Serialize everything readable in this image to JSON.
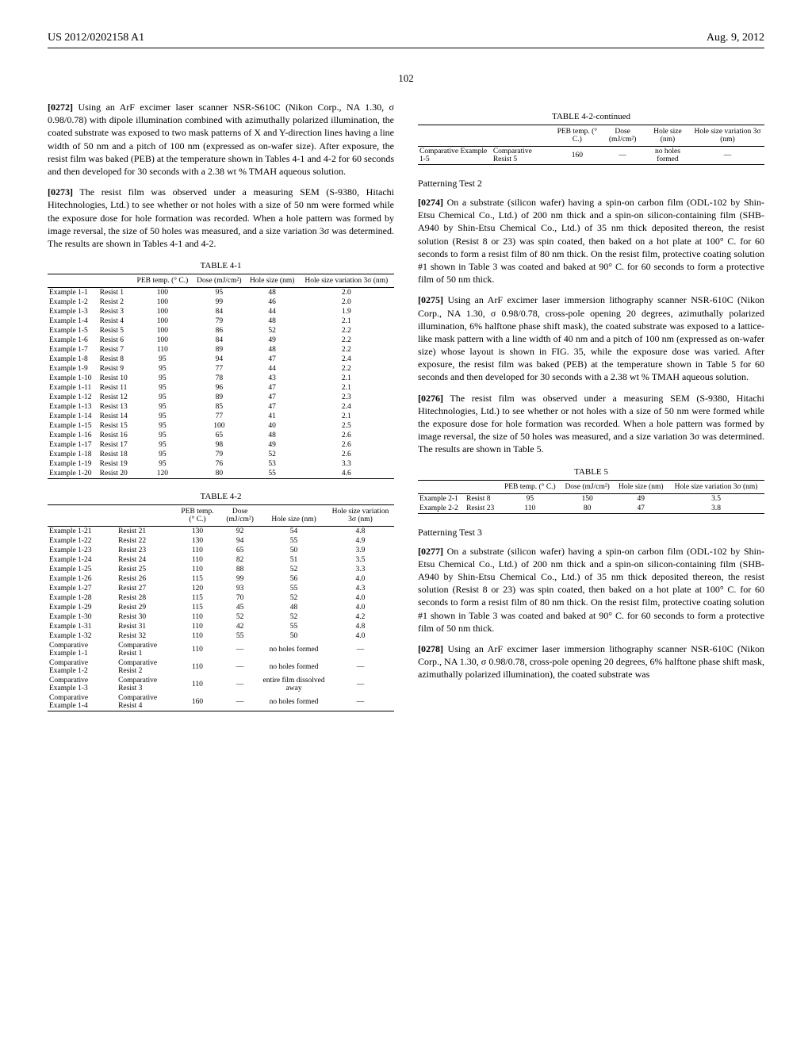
{
  "header": {
    "left": "US 2012/0202158 A1",
    "right": "Aug. 9, 2012"
  },
  "page_number": "102",
  "para_0272": {
    "num": "[0272]",
    "text": "Using an ArF excimer laser scanner NSR-S610C (Nikon Corp., NA 1.30, σ 0.98/0.78) with dipole illumination combined with azimuthally polarized illumination, the coated substrate was exposed to two mask patterns of X and Y-direction lines having a line width of 50 nm and a pitch of 100 nm (expressed as on-wafer size). After exposure, the resist film was baked (PEB) at the temperature shown in Tables 4-1 and 4-2 for 60 seconds and then developed for 30 seconds with a 2.38 wt % TMAH aqueous solution."
  },
  "para_0273": {
    "num": "[0273]",
    "text": "The resist film was observed under a measuring SEM (S-9380, Hitachi Hitechnologies, Ltd.) to see whether or not holes with a size of 50 nm were formed while the exposure dose for hole formation was recorded. When a hole pattern was formed by image reversal, the size of 50 holes was measured, and a size variation 3σ was determined. The results are shown in Tables 4-1 and 4-2."
  },
  "table_4_1": {
    "title": "TABLE 4-1",
    "headers": [
      "",
      "",
      "PEB temp. (° C.)",
      "Dose (mJ/cm²)",
      "Hole size (nm)",
      "Hole size variation 3σ (nm)"
    ],
    "rows": [
      [
        "Example 1-1",
        "Resist 1",
        "100",
        "95",
        "48",
        "2.0"
      ],
      [
        "Example 1-2",
        "Resist 2",
        "100",
        "99",
        "46",
        "2.0"
      ],
      [
        "Example 1-3",
        "Resist 3",
        "100",
        "84",
        "44",
        "1.9"
      ],
      [
        "Example 1-4",
        "Resist 4",
        "100",
        "79",
        "48",
        "2.1"
      ],
      [
        "Example 1-5",
        "Resist 5",
        "100",
        "86",
        "52",
        "2.2"
      ],
      [
        "Example 1-6",
        "Resist 6",
        "100",
        "84",
        "49",
        "2.2"
      ],
      [
        "Example 1-7",
        "Resist 7",
        "110",
        "89",
        "48",
        "2.2"
      ],
      [
        "Example 1-8",
        "Resist 8",
        "95",
        "94",
        "47",
        "2.4"
      ],
      [
        "Example 1-9",
        "Resist 9",
        "95",
        "77",
        "44",
        "2.2"
      ],
      [
        "Example 1-10",
        "Resist 10",
        "95",
        "78",
        "43",
        "2.1"
      ],
      [
        "Example 1-11",
        "Resist 11",
        "95",
        "96",
        "47",
        "2.1"
      ],
      [
        "Example 1-12",
        "Resist 12",
        "95",
        "89",
        "47",
        "2.3"
      ],
      [
        "Example 1-13",
        "Resist 13",
        "95",
        "85",
        "47",
        "2.4"
      ],
      [
        "Example 1-14",
        "Resist 14",
        "95",
        "77",
        "41",
        "2.1"
      ],
      [
        "Example 1-15",
        "Resist 15",
        "95",
        "100",
        "40",
        "2.5"
      ],
      [
        "Example 1-16",
        "Resist 16",
        "95",
        "65",
        "48",
        "2.6"
      ],
      [
        "Example 1-17",
        "Resist 17",
        "95",
        "98",
        "49",
        "2.6"
      ],
      [
        "Example 1-18",
        "Resist 18",
        "95",
        "79",
        "52",
        "2.6"
      ],
      [
        "Example 1-19",
        "Resist 19",
        "95",
        "76",
        "53",
        "3.3"
      ],
      [
        "Example 1-20",
        "Resist 20",
        "120",
        "80",
        "55",
        "4.6"
      ]
    ]
  },
  "table_4_2": {
    "title": "TABLE 4-2",
    "headers": [
      "",
      "",
      "PEB temp. (° C.)",
      "Dose (mJ/cm²)",
      "Hole size (nm)",
      "Hole size variation 3σ (nm)"
    ],
    "rows": [
      [
        "Example 1-21",
        "Resist 21",
        "130",
        "92",
        "54",
        "4.8"
      ],
      [
        "Example 1-22",
        "Resist 22",
        "130",
        "94",
        "55",
        "4.9"
      ],
      [
        "Example 1-23",
        "Resist 23",
        "110",
        "65",
        "50",
        "3.9"
      ],
      [
        "Example 1-24",
        "Resist 24",
        "110",
        "82",
        "51",
        "3.5"
      ],
      [
        "Example 1-25",
        "Resist 25",
        "110",
        "88",
        "52",
        "3.3"
      ],
      [
        "Example 1-26",
        "Resist 26",
        "115",
        "99",
        "56",
        "4.0"
      ],
      [
        "Example 1-27",
        "Resist 27",
        "120",
        "93",
        "55",
        "4.3"
      ],
      [
        "Example 1-28",
        "Resist 28",
        "115",
        "70",
        "52",
        "4.0"
      ],
      [
        "Example 1-29",
        "Resist 29",
        "115",
        "45",
        "48",
        "4.0"
      ],
      [
        "Example 1-30",
        "Resist 30",
        "110",
        "52",
        "52",
        "4.2"
      ],
      [
        "Example 1-31",
        "Resist 31",
        "110",
        "42",
        "55",
        "4.8"
      ],
      [
        "Example 1-32",
        "Resist 32",
        "110",
        "55",
        "50",
        "4.0"
      ],
      [
        "Comparative Example 1-1",
        "Comparative Resist 1",
        "110",
        "—",
        "no holes formed",
        "—"
      ],
      [
        "Comparative Example 1-2",
        "Comparative Resist 2",
        "110",
        "—",
        "no holes formed",
        "—"
      ],
      [
        "Comparative Example 1-3",
        "Comparative Resist 3",
        "110",
        "—",
        "entire film dissolved away",
        "—"
      ],
      [
        "Comparative Example 1-4",
        "Comparative Resist 4",
        "160",
        "—",
        "no holes formed",
        "—"
      ]
    ]
  },
  "table_4_2_cont": {
    "title": "TABLE 4-2-continued",
    "headers": [
      "",
      "",
      "PEB temp. (° C.)",
      "Dose (mJ/cm²)",
      "Hole size (nm)",
      "Hole size variation 3σ (nm)"
    ],
    "rows": [
      [
        "Comparative Example 1-5",
        "Comparative Resist 5",
        "160",
        "—",
        "no holes formed",
        "—"
      ]
    ]
  },
  "section_pt2": "Patterning Test 2",
  "para_0274": {
    "num": "[0274]",
    "text": "On a substrate (silicon wafer) having a spin-on carbon film (ODL-102 by Shin-Etsu Chemical Co., Ltd.) of 200 nm thick and a spin-on silicon-containing film (SHB-A940 by Shin-Etsu Chemical Co., Ltd.) of 35 nm thick deposited thereon, the resist solution (Resist 8 or 23) was spin coated, then baked on a hot plate at 100° C. for 60 seconds to form a resist film of 80 nm thick. On the resist film, protective coating solution #1 shown in Table 3 was coated and baked at 90° C. for 60 seconds to form a protective film of 50 nm thick."
  },
  "para_0275": {
    "num": "[0275]",
    "text": "Using an ArF excimer laser immersion lithography scanner NSR-610C (Nikon Corp., NA 1.30, σ 0.98/0.78, cross-pole opening 20 degrees, azimuthally polarized illumination, 6% halftone phase shift mask), the coated substrate was exposed to a lattice-like mask pattern with a line width of 40 nm and a pitch of 100 nm (expressed as on-wafer size) whose layout is shown in FIG. 35, while the exposure dose was varied. After exposure, the resist film was baked (PEB) at the temperature shown in Table 5 for 60 seconds and then developed for 30 seconds with a 2.38 wt % TMAH aqueous solution."
  },
  "para_0276": {
    "num": "[0276]",
    "text": "The resist film was observed under a measuring SEM (S-9380, Hitachi Hitechnologies, Ltd.) to see whether or not holes with a size of 50 nm were formed while the exposure dose for hole formation was recorded. When a hole pattern was formed by image reversal, the size of 50 holes was measured, and a size variation 3σ was determined. The results are shown in Table 5."
  },
  "table_5": {
    "title": "TABLE 5",
    "headers": [
      "",
      "",
      "PEB temp. (° C.)",
      "Dose (mJ/cm²)",
      "Hole size (nm)",
      "Hole size variation 3σ (nm)"
    ],
    "rows": [
      [
        "Example 2-1",
        "Resist 8",
        "95",
        "150",
        "49",
        "3.5"
      ],
      [
        "Example 2-2",
        "Resist 23",
        "110",
        "80",
        "47",
        "3.8"
      ]
    ]
  },
  "section_pt3": "Patterning Test 3",
  "para_0277": {
    "num": "[0277]",
    "text": "On a substrate (silicon wafer) having a spin-on carbon film (ODL-102 by Shin-Etsu Chemical Co., Ltd.) of 200 nm thick and a spin-on silicon-containing film (SHB-A940 by Shin-Etsu Chemical Co., Ltd.) of 35 nm thick deposited thereon, the resist solution (Resist 8 or 23) was spin coated, then baked on a hot plate at 100° C. for 60 seconds to form a resist film of 80 nm thick. On the resist film, protective coating solution #1 shown in Table 3 was coated and baked at 90° C. for 60 seconds to form a protective film of 50 nm thick."
  },
  "para_0278": {
    "num": "[0278]",
    "text": "Using an ArF excimer laser immersion lithography scanner NSR-610C (Nikon Corp., NA 1.30, σ 0.98/0.78, cross-pole opening 20 degrees, 6% halftone phase shift mask, azimuthally polarized illumination), the coated substrate was"
  }
}
